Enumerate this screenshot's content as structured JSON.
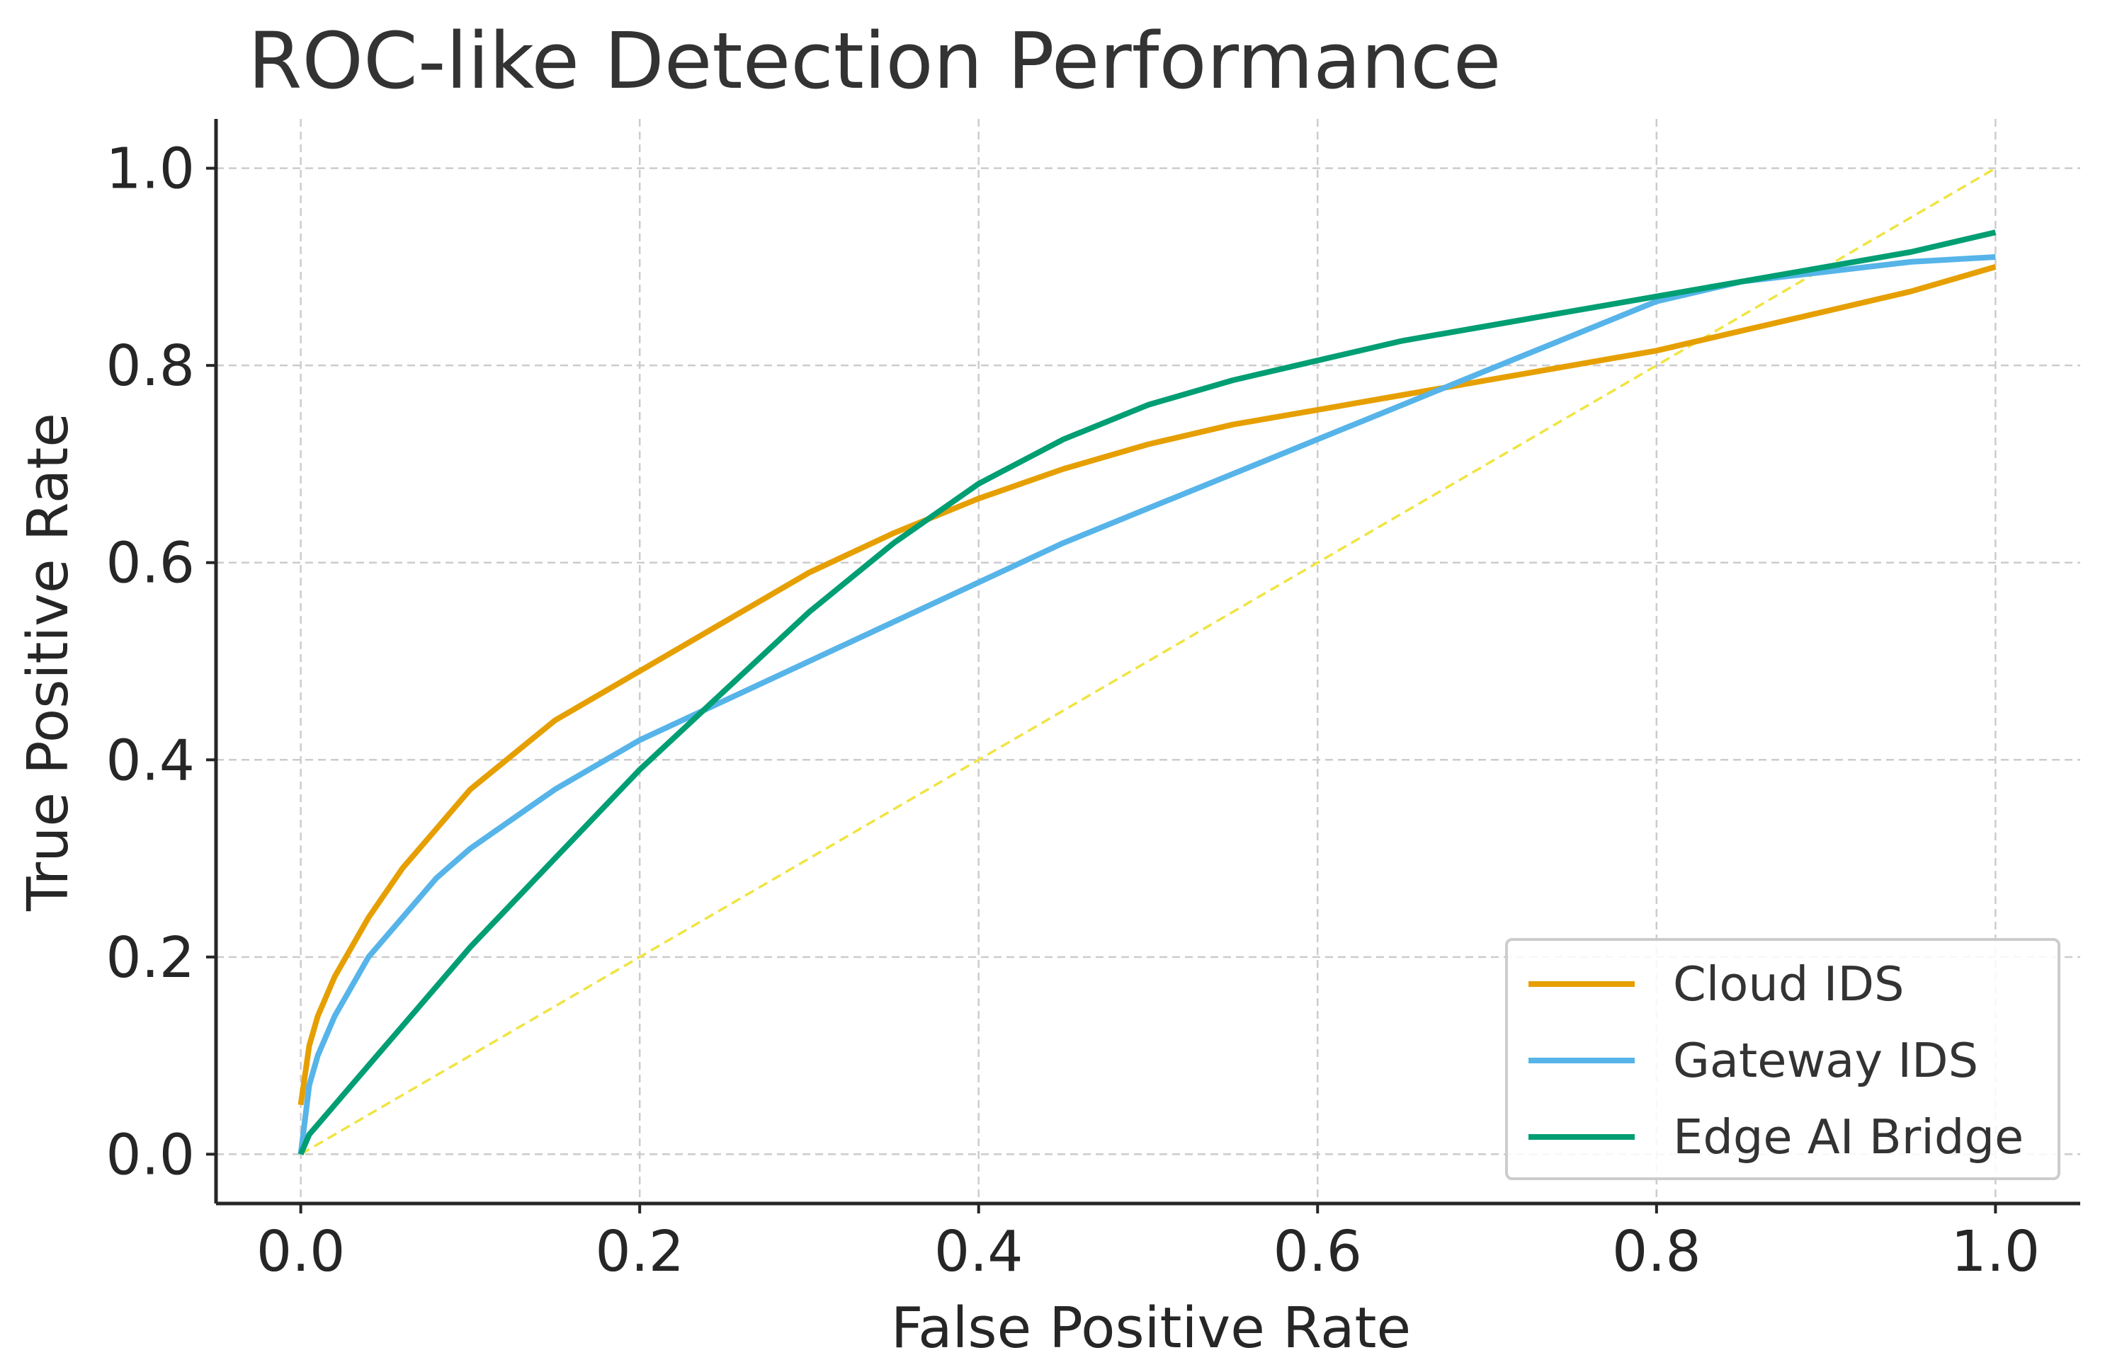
{
  "chart_data": {
    "type": "line",
    "title": "ROC-like Detection Performance",
    "xlabel": "False Positive Rate",
    "ylabel": "True Positive Rate",
    "xlim": [
      -0.05,
      1.05
    ],
    "ylim": [
      -0.05,
      1.05
    ],
    "xticks": [
      "0.0",
      "0.2",
      "0.4",
      "0.6",
      "0.8",
      "1.0"
    ],
    "yticks": [
      "0.0",
      "0.2",
      "0.4",
      "0.6",
      "0.8",
      "1.0"
    ],
    "grid": true,
    "legend_position": "lower-right",
    "x": [
      0.0,
      0.005,
      0.01,
      0.02,
      0.04,
      0.06,
      0.08,
      0.1,
      0.15,
      0.2,
      0.25,
      0.3,
      0.35,
      0.4,
      0.45,
      0.5,
      0.55,
      0.6,
      0.65,
      0.7,
      0.75,
      0.8,
      0.85,
      0.9,
      0.95,
      1.0
    ],
    "series": [
      {
        "name": "Cloud IDS",
        "color": "#E69F00",
        "values": [
          0.05,
          0.11,
          0.14,
          0.18,
          0.24,
          0.29,
          0.33,
          0.37,
          0.44,
          0.49,
          0.54,
          0.59,
          0.63,
          0.665,
          0.695,
          0.72,
          0.74,
          0.755,
          0.77,
          0.785,
          0.8,
          0.815,
          0.835,
          0.855,
          0.875,
          0.9
        ]
      },
      {
        "name": "Gateway IDS",
        "color": "#56B4E9",
        "values": [
          0.0,
          0.07,
          0.1,
          0.14,
          0.2,
          0.24,
          0.28,
          0.31,
          0.37,
          0.42,
          0.46,
          0.5,
          0.54,
          0.58,
          0.62,
          0.655,
          0.69,
          0.725,
          0.76,
          0.795,
          0.83,
          0.865,
          0.885,
          0.895,
          0.905,
          0.91
        ]
      },
      {
        "name": "Edge AI Bridge",
        "color": "#009E73",
        "values": [
          0.0,
          0.02,
          0.03,
          0.05,
          0.09,
          0.13,
          0.17,
          0.21,
          0.3,
          0.39,
          0.47,
          0.55,
          0.62,
          0.68,
          0.725,
          0.76,
          0.785,
          0.805,
          0.825,
          0.84,
          0.855,
          0.87,
          0.885,
          0.9,
          0.915,
          0.935
        ]
      }
    ],
    "reference_line": {
      "color": "#F0E442",
      "x": [
        0.0,
        1.0
      ],
      "y": [
        0.0,
        1.0
      ]
    }
  }
}
